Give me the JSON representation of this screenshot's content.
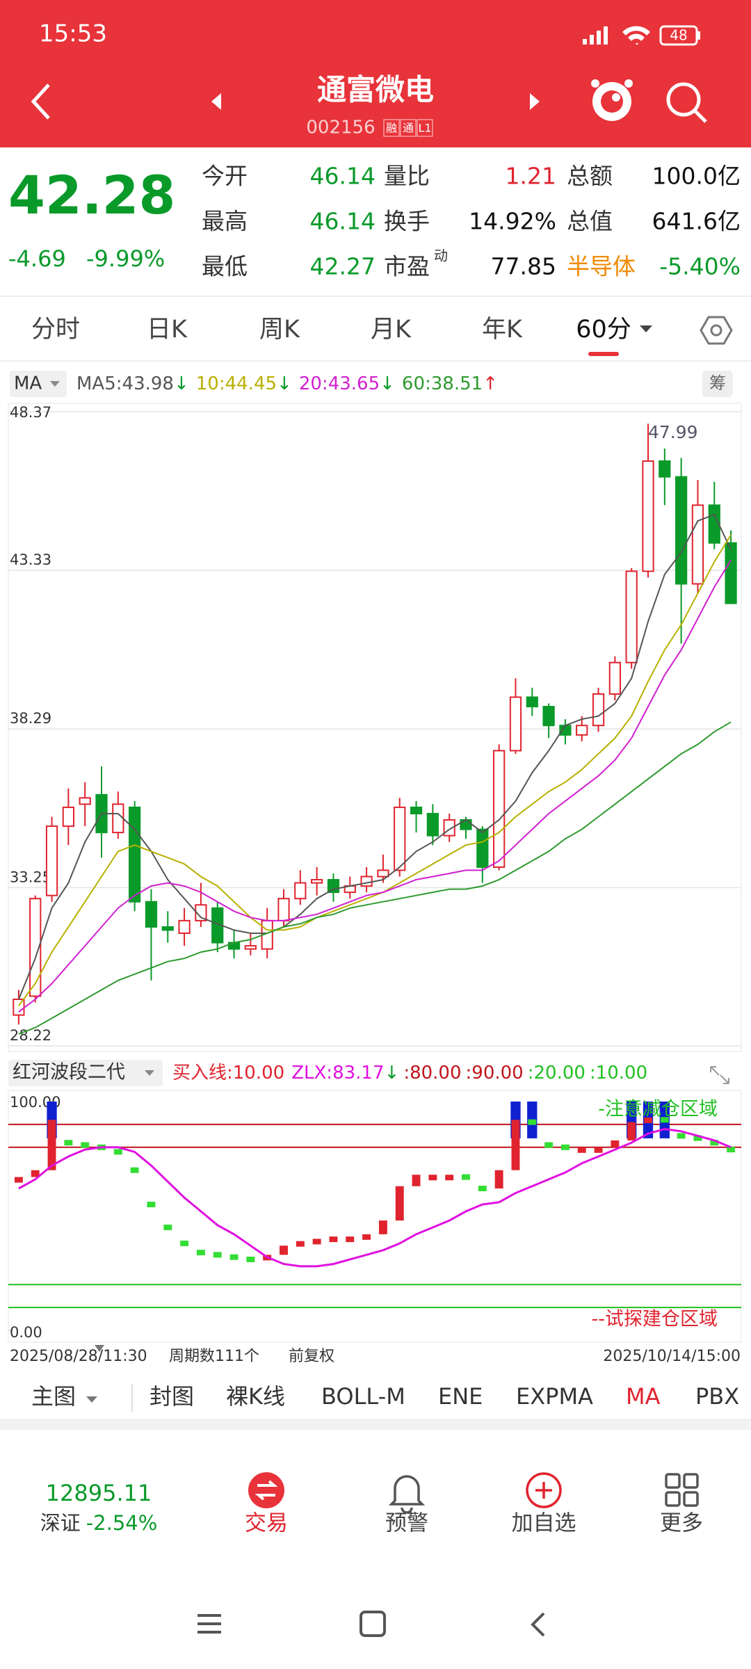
{
  "status_bar": {
    "time": "15:53",
    "battery": "48"
  },
  "header": {
    "title": "通富微电",
    "code": "002156",
    "badges": [
      "融",
      "通",
      "L1"
    ]
  },
  "quote": {
    "price": "42.28",
    "change": "-4.69",
    "change_pct": "-9.99%",
    "fields": [
      {
        "label": "今开",
        "value": "46.14",
        "color": "#0a9a2a"
      },
      {
        "label": "量比",
        "value": "1.21",
        "color": "#e0232e"
      },
      {
        "label": "总额",
        "value": "100.0亿",
        "color": "#111111"
      },
      {
        "label": "最高",
        "value": "46.14",
        "color": "#0a9a2a"
      },
      {
        "label": "换手",
        "value": "14.92%",
        "color": "#111111"
      },
      {
        "label": "总值",
        "value": "641.6亿",
        "color": "#111111"
      },
      {
        "label": "最低",
        "value": "42.27",
        "color": "#0a9a2a"
      },
      {
        "label": "市盈",
        "sup": "动",
        "value": "77.85",
        "color": "#111111"
      },
      {
        "label": "半导体",
        "value": "-5.40%",
        "color": "#0a9a2a",
        "label_color": "#f08a00"
      }
    ]
  },
  "chart_tabs": {
    "items": [
      "分时",
      "日K",
      "周K",
      "月K",
      "年K",
      "60分"
    ],
    "active": 5
  },
  "main_chart": {
    "type": "candlestick",
    "indicator": "MA",
    "chip_button": "筹",
    "ylim": [
      28.22,
      48.37
    ],
    "yticks": [
      48.37,
      43.33,
      38.29,
      33.25,
      28.22
    ],
    "grid": true,
    "high_label": 47.99,
    "high_index": 38,
    "candles": [
      [
        29.2,
        30.0,
        28.9,
        29.7
      ],
      [
        29.8,
        33.0,
        29.6,
        32.9
      ],
      [
        33.0,
        35.5,
        32.8,
        35.2
      ],
      [
        35.2,
        36.4,
        34.6,
        35.8
      ],
      [
        35.9,
        36.6,
        35.2,
        36.1
      ],
      [
        36.2,
        37.1,
        34.2,
        35.0
      ],
      [
        35.0,
        36.3,
        34.8,
        35.9
      ],
      [
        35.8,
        36.0,
        32.5,
        32.8
      ],
      [
        32.8,
        33.2,
        30.3,
        32.0
      ],
      [
        32.0,
        32.5,
        31.5,
        31.9
      ],
      [
        31.8,
        32.6,
        31.4,
        32.2
      ],
      [
        32.2,
        33.4,
        32.0,
        32.7
      ],
      [
        32.6,
        32.8,
        31.2,
        31.5
      ],
      [
        31.5,
        31.9,
        31.0,
        31.3
      ],
      [
        31.3,
        31.8,
        31.1,
        31.4
      ],
      [
        31.3,
        32.6,
        31.0,
        32.2
      ],
      [
        32.2,
        33.2,
        32.0,
        32.9
      ],
      [
        32.9,
        33.8,
        32.7,
        33.4
      ],
      [
        33.4,
        33.9,
        33.0,
        33.5
      ],
      [
        33.5,
        33.7,
        32.8,
        33.1
      ],
      [
        33.1,
        33.6,
        32.9,
        33.3
      ],
      [
        33.3,
        33.9,
        33.1,
        33.6
      ],
      [
        33.6,
        34.3,
        33.4,
        33.8
      ],
      [
        33.8,
        36.1,
        33.6,
        35.8
      ],
      [
        35.8,
        36.0,
        35.0,
        35.6
      ],
      [
        35.6,
        35.9,
        34.6,
        34.9
      ],
      [
        34.9,
        35.6,
        34.7,
        35.4
      ],
      [
        35.4,
        35.5,
        34.8,
        35.1
      ],
      [
        35.1,
        35.2,
        33.4,
        33.9
      ],
      [
        33.9,
        37.8,
        33.8,
        37.6
      ],
      [
        37.6,
        39.9,
        37.5,
        39.3
      ],
      [
        39.3,
        39.6,
        38.7,
        39.0
      ],
      [
        39.0,
        39.1,
        38.0,
        38.4
      ],
      [
        38.4,
        38.6,
        37.8,
        38.1
      ],
      [
        38.1,
        38.7,
        37.9,
        38.4
      ],
      [
        38.4,
        39.6,
        38.2,
        39.4
      ],
      [
        39.4,
        40.6,
        39.2,
        40.4
      ],
      [
        40.4,
        43.4,
        40.2,
        43.3
      ],
      [
        43.3,
        47.99,
        43.1,
        46.8
      ],
      [
        46.8,
        47.2,
        45.4,
        46.3
      ],
      [
        46.3,
        46.9,
        41.0,
        42.9
      ],
      [
        42.9,
        46.2,
        42.6,
        45.4
      ],
      [
        45.4,
        46.14,
        44.0,
        44.2
      ],
      [
        44.2,
        44.6,
        42.27,
        42.28
      ]
    ],
    "up_color": "#e0232e",
    "down_color": "#0a9a2a",
    "series": [
      {
        "name": "MA5:",
        "legend_value": 43.98,
        "arrow": "↓",
        "arrow_color": "#0a9a2a",
        "color": "#555555",
        "values": [
          29.7,
          31.0,
          32.6,
          33.4,
          34.7,
          35.6,
          35.6,
          35.1,
          34.4,
          33.5,
          32.9,
          32.3,
          32.1,
          31.9,
          31.8,
          31.8,
          32.0,
          32.4,
          32.9,
          33.2,
          33.3,
          33.4,
          33.5,
          33.9,
          34.4,
          34.7,
          35.1,
          35.4,
          35.0,
          35.4,
          36.0,
          36.9,
          37.6,
          38.4,
          38.6,
          38.7,
          39.1,
          39.9,
          41.7,
          43.2,
          43.9,
          44.9,
          45.1,
          43.98
        ]
      },
      {
        "name": "10:",
        "legend_value": 44.45,
        "arrow": "↓",
        "arrow_color": "#0a9a2a",
        "color": "#b8b000",
        "values": [
          29.5,
          30.2,
          31.2,
          32.0,
          32.8,
          33.6,
          34.4,
          34.6,
          34.4,
          34.2,
          34.0,
          33.6,
          33.3,
          32.8,
          32.3,
          31.9,
          31.9,
          32.0,
          32.3,
          32.5,
          32.7,
          32.9,
          33.1,
          33.4,
          33.7,
          34.0,
          34.3,
          34.6,
          34.7,
          35.0,
          35.5,
          35.9,
          36.3,
          36.6,
          37.0,
          37.5,
          38.0,
          38.7,
          39.8,
          40.8,
          41.6,
          42.6,
          43.6,
          44.45
        ]
      },
      {
        "name": "20:",
        "legend_value": 43.65,
        "arrow": "↓",
        "arrow_color": "#0a9a2a",
        "color": "#d020d0",
        "values": [
          29.3,
          29.7,
          30.2,
          30.8,
          31.4,
          32.0,
          32.6,
          33.0,
          33.3,
          33.4,
          33.3,
          33.1,
          32.8,
          32.5,
          32.3,
          32.2,
          32.2,
          32.3,
          32.4,
          32.6,
          32.8,
          33.0,
          33.1,
          33.3,
          33.5,
          33.6,
          33.7,
          33.8,
          33.8,
          34.1,
          34.6,
          35.1,
          35.6,
          36.0,
          36.4,
          36.8,
          37.3,
          38.0,
          39.0,
          40.0,
          40.8,
          41.8,
          42.8,
          43.65
        ]
      },
      {
        "name": "60:",
        "legend_value": 38.51,
        "arrow": "↑",
        "arrow_color": "#e0232e",
        "color": "#2e9a2e",
        "values": [
          28.6,
          28.8,
          29.1,
          29.4,
          29.7,
          30.0,
          30.3,
          30.5,
          30.7,
          30.9,
          31.0,
          31.2,
          31.3,
          31.5,
          31.6,
          31.8,
          32.0,
          32.1,
          32.3,
          32.4,
          32.6,
          32.7,
          32.8,
          32.9,
          33.0,
          33.1,
          33.2,
          33.2,
          33.3,
          33.5,
          33.8,
          34.1,
          34.4,
          34.8,
          35.1,
          35.5,
          35.9,
          36.3,
          36.7,
          37.1,
          37.5,
          37.8,
          38.2,
          38.51
        ]
      }
    ]
  },
  "indicator_chart": {
    "type": "bar-line",
    "name": "红河波段二代",
    "buy_line": {
      "label": "买入线:",
      "value": "10.00"
    },
    "zlx": {
      "label": "ZLX:",
      "value": "83.17",
      "arrow": "↓"
    },
    "levels": [
      {
        "value": 80,
        "label": ":80.00",
        "color": "#c0141c"
      },
      {
        "value": 90,
        "label": ":90.00",
        "color": "#c0141c"
      },
      {
        "value": 20,
        "label": ":20.00",
        "color": "#22c022"
      },
      {
        "value": 10,
        "label": ":10.00",
        "color": "#22c022"
      }
    ],
    "ylim": [
      0,
      100
    ],
    "yticks": [
      {
        "value": 100,
        "label": "100.00"
      },
      {
        "value": 0,
        "label": "0.00"
      }
    ],
    "signal_color": "#1020d0",
    "signal_level": 1,
    "bars": [
      67,
      70,
      92,
      82,
      81,
      80,
      78,
      70,
      55,
      45,
      38,
      34,
      33,
      32,
      31,
      33,
      37,
      39,
      40,
      41,
      41,
      42,
      48,
      63,
      68,
      68,
      68,
      67,
      62,
      70,
      92,
      91,
      81,
      80,
      80,
      80,
      83,
      91,
      93,
      92,
      85,
      84,
      82,
      79
    ],
    "line": {
      "color": "#e010e0",
      "values": [
        62,
        66,
        72,
        76,
        79,
        80,
        80,
        78,
        72,
        65,
        58,
        52,
        46,
        42,
        37,
        32,
        29,
        28,
        28,
        29,
        31,
        33,
        35,
        38,
        42,
        45,
        48,
        52,
        55,
        56,
        60,
        63,
        66,
        69,
        73,
        76,
        79,
        82,
        86,
        88,
        87,
        85,
        83,
        80
      ]
    },
    "annotations": [
      {
        "text": "-注意减仓区域",
        "color": "#22c022"
      },
      {
        "text": "--试探建仓区域",
        "color": "#e0232e"
      }
    ]
  },
  "footer": {
    "start": "2025/08/28/11:30",
    "periods": "周期数111个",
    "adjust": "前复权",
    "end": "2025/10/14/15:00"
  },
  "indicator_tabs": {
    "items": [
      "主图",
      "封图",
      "裸K线",
      "BOLL-M",
      "ENE",
      "EXPMA",
      "MA",
      "PBX"
    ],
    "active": 6
  },
  "bottom_nav": {
    "index_value": "12895.11",
    "index_name": "深证",
    "index_change": "-2.54%",
    "items": [
      "交易",
      "预警",
      "加自选",
      "更多"
    ]
  }
}
